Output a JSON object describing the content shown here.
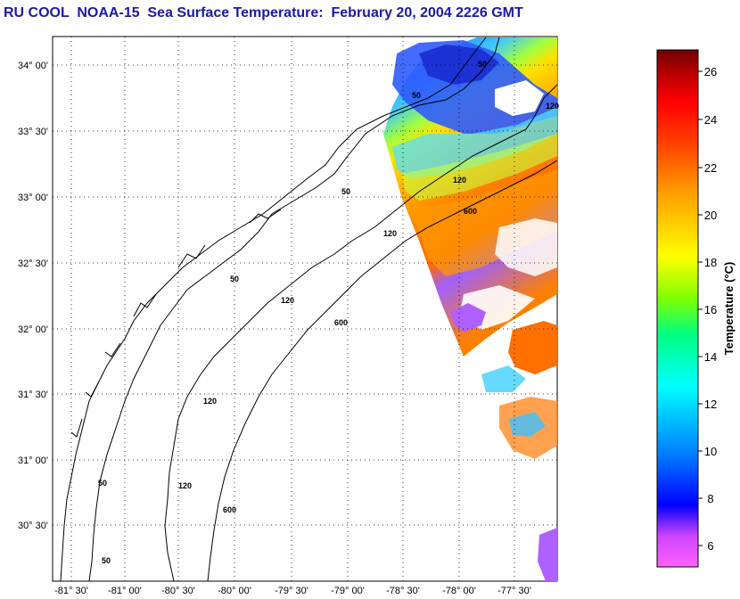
{
  "title": "RU COOL  NOAA-15  Sea Surface Temperature:  February 20, 2004 2226 GMT",
  "map": {
    "lon_ticks": [
      "-81° 30'",
      "-81° 00'",
      "-80° 30'",
      "-80° 00'",
      "-79° 30'",
      "-79° 00'",
      "-78° 30'",
      "-78° 00'",
      "-77° 30'"
    ],
    "lat_ticks": [
      "34° 00'",
      "33° 30'",
      "33° 00'",
      "32° 30'",
      "32° 00'",
      "31° 30'",
      "31° 00'",
      "30° 30'"
    ],
    "contour_labels": [
      "50",
      "50",
      "120",
      "600",
      "120",
      "50",
      "120",
      "600",
      "50",
      "120",
      "120",
      "600",
      "50",
      "120",
      "50"
    ]
  },
  "colorbar": {
    "label": "Temperature (°C)",
    "ticks": [
      "26",
      "24",
      "22",
      "20",
      "18",
      "16",
      "14",
      "12",
      "10",
      "8",
      "6"
    ],
    "stops": [
      "#ff60ff",
      "#cc44ff",
      "#0000ff",
      "#0080ff",
      "#00ffff",
      "#00ff80",
      "#80ff00",
      "#ffff00",
      "#ffa000",
      "#ff4000",
      "#ff0000",
      "#b00000",
      "#700000"
    ]
  }
}
